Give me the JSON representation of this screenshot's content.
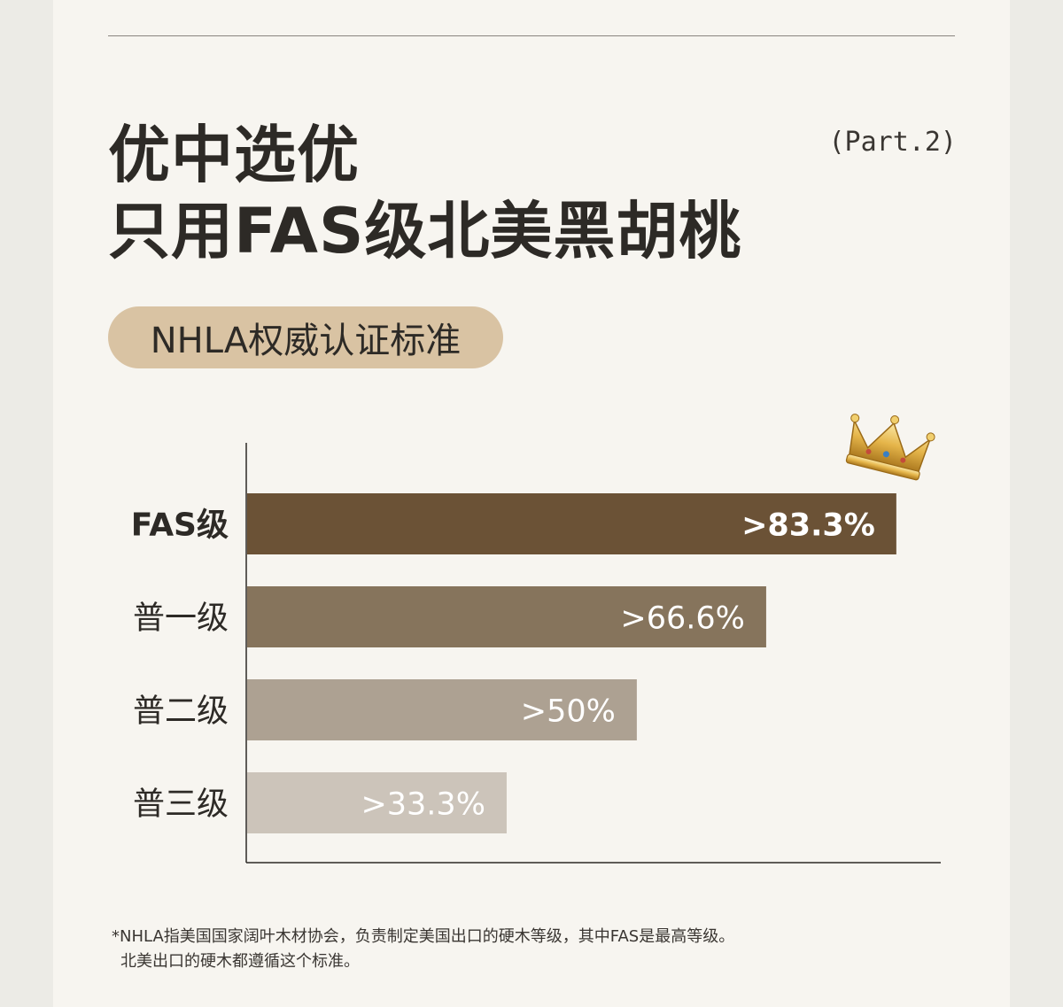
{
  "header": {
    "title_line1": "优中选优",
    "title_line2": "只用FAS级北美黑胡桃",
    "part": "(Part.2)",
    "badge": "NHLA权威认证标准"
  },
  "chart_data": {
    "type": "bar",
    "orientation": "horizontal",
    "categories": [
      "FAS级",
      "普一级",
      "普二级",
      "普三级"
    ],
    "values": [
      83.3,
      66.6,
      50,
      33.3
    ],
    "value_labels": [
      ">83.3%",
      ">66.6%",
      ">50%",
      ">33.3%"
    ],
    "xlim": [
      0,
      89
    ],
    "colors": [
      "#6b5236",
      "#86745c",
      "#ada192",
      "#ccc4ba"
    ],
    "highlight_category": "FAS级",
    "highlight_icon": "crown-icon"
  },
  "footnote": {
    "line1": "*NHLA指美国国家阔叶木材协会，负责制定美国出口的硬木等级，其中FAS是最高等级。",
    "line2": "北美出口的硬木都遵循这个标准。"
  }
}
